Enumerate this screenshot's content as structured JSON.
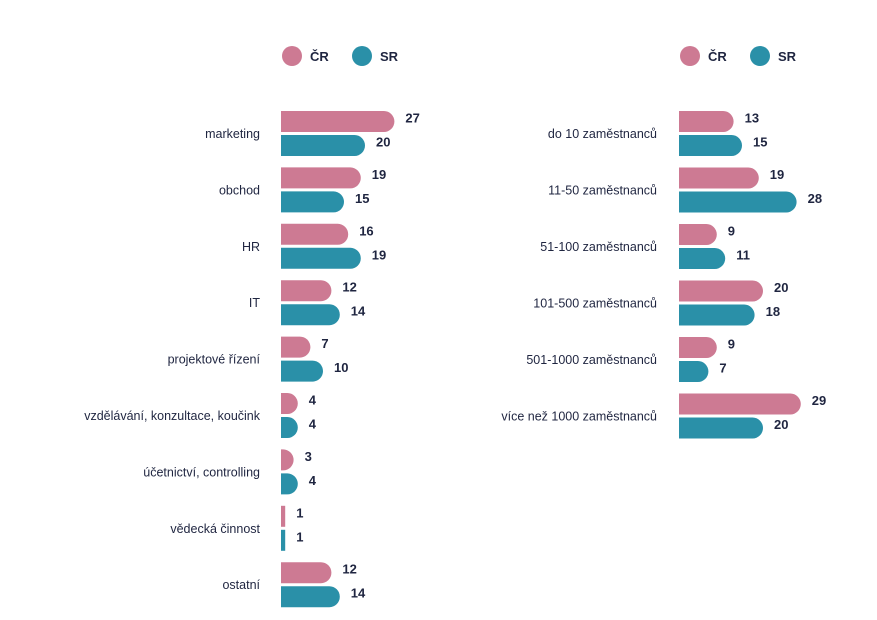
{
  "colors": {
    "cr": "#cd7a93",
    "sr": "#2a90a8",
    "text": "#1f2540"
  },
  "chart_data": [
    {
      "type": "bar",
      "orientation": "horizontal",
      "categories": [
        "marketing",
        "obchod",
        "HR",
        "IT",
        "projektové řízení",
        "vzdělávání, konzultace, koučink",
        "účetnictví, controlling",
        "vědecká činnost",
        "ostatní"
      ],
      "series": [
        {
          "name": "ČR",
          "values": [
            27,
            19,
            16,
            12,
            7,
            4,
            3,
            1,
            12
          ]
        },
        {
          "name": "SR",
          "values": [
            20,
            15,
            19,
            14,
            10,
            4,
            4,
            1,
            14
          ]
        }
      ],
      "xlim": [
        0,
        29
      ],
      "legend": "top",
      "grid": false
    },
    {
      "type": "bar",
      "orientation": "horizontal",
      "categories": [
        "do 10 zaměstnanců",
        "11-50 zaměstnanců",
        "51-100 zaměstnanců",
        "101-500 zaměstnanců",
        "501-1000 zaměstnanců",
        "více než 1000 zaměstnanců"
      ],
      "series": [
        {
          "name": "ČR",
          "values": [
            13,
            19,
            9,
            20,
            9,
            29
          ]
        },
        {
          "name": "SR",
          "values": [
            15,
            28,
            11,
            18,
            7,
            20
          ]
        }
      ],
      "xlim": [
        0,
        29
      ],
      "legend": "top",
      "grid": false
    }
  ]
}
